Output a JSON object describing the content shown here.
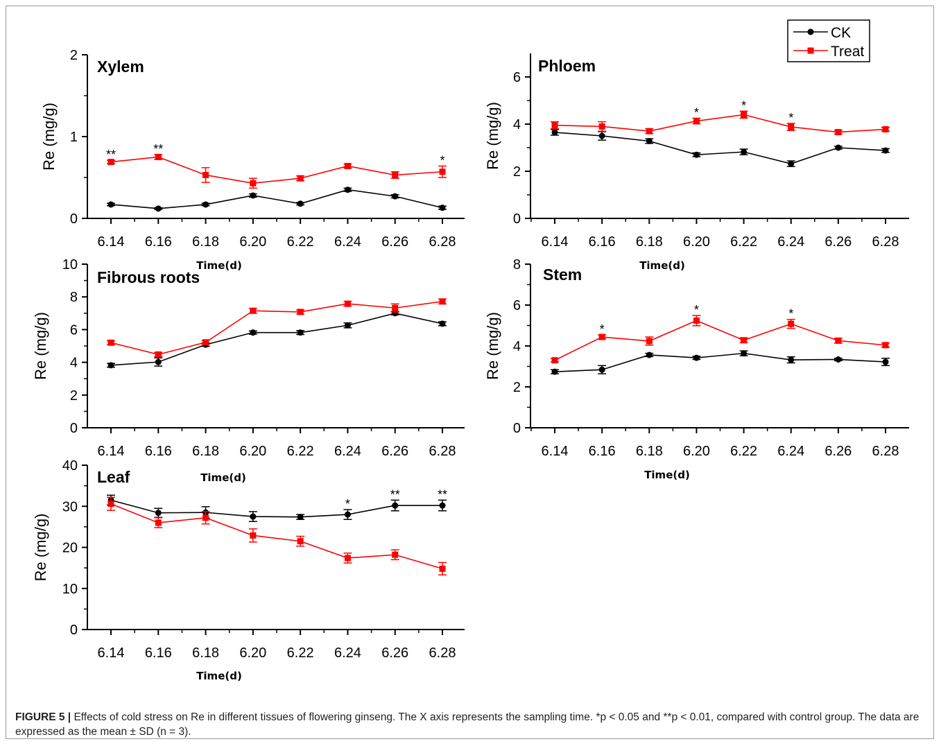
{
  "caption": {
    "label": "FIGURE 5 |",
    "text": " Effects of cold stress on Re in different tissues of flowering ginseng. The X axis represents the sampling time. *p < 0.05 and **p < 0.01, compared with control group. The data are expressed as the mean ± SD (n = 3)."
  },
  "legend": [
    {
      "name": "CK",
      "color": "#000000",
      "marker": "circle"
    },
    {
      "name": "Treat",
      "color": "#ff0000",
      "marker": "square"
    }
  ],
  "chart_data": [
    {
      "type": "line",
      "title": "Xylem",
      "xlabel": "Time(d)",
      "ylabel": "Re (mg/g)",
      "categories": [
        "6.14",
        "6.16",
        "6.18",
        "6.20",
        "6.22",
        "6.24",
        "6.26",
        "6.28"
      ],
      "ylim": [
        0,
        2
      ],
      "yticks": [
        0,
        1,
        2
      ],
      "series": [
        {
          "name": "CK",
          "color": "#000000",
          "values": [
            0.17,
            0.12,
            0.17,
            0.28,
            0.18,
            0.35,
            0.27,
            0.13
          ],
          "errors": [
            0.015,
            0.01,
            0.015,
            0.02,
            0.015,
            0.02,
            0.02,
            0.02
          ]
        },
        {
          "name": "Treat",
          "color": "#ff0000",
          "values": [
            0.69,
            0.75,
            0.53,
            0.43,
            0.49,
            0.64,
            0.53,
            0.57
          ],
          "errors": [
            0.02,
            0.03,
            0.09,
            0.06,
            0.03,
            0.025,
            0.04,
            0.07
          ]
        }
      ],
      "significance": [
        {
          "x": "6.14",
          "label": "**"
        },
        {
          "x": "6.16",
          "label": "**"
        },
        {
          "x": "6.28",
          "label": "*"
        }
      ]
    },
    {
      "type": "line",
      "title": "Phloem",
      "xlabel": "Time(d)",
      "ylabel": "Re (mg/g)",
      "categories": [
        "6.14",
        "6.16",
        "6.18",
        "6.20",
        "6.22",
        "6.24",
        "6.26",
        "6.28"
      ],
      "ylim": [
        0,
        7
      ],
      "yticks": [
        0,
        2,
        4,
        6
      ],
      "series": [
        {
          "name": "CK",
          "color": "#000000",
          "values": [
            3.65,
            3.5,
            3.28,
            2.7,
            2.82,
            2.32,
            3.0,
            2.88
          ],
          "errors": [
            0.12,
            0.18,
            0.1,
            0.08,
            0.12,
            0.12,
            0.06,
            0.08
          ]
        },
        {
          "name": "Treat",
          "color": "#ff0000",
          "values": [
            3.95,
            3.9,
            3.7,
            4.13,
            4.4,
            3.88,
            3.66,
            3.78
          ],
          "errors": [
            0.15,
            0.2,
            0.1,
            0.12,
            0.15,
            0.15,
            0.08,
            0.08
          ]
        }
      ],
      "significance": [
        {
          "x": "6.20",
          "label": "*"
        },
        {
          "x": "6.22",
          "label": "*"
        },
        {
          "x": "6.24",
          "label": "*"
        }
      ]
    },
    {
      "type": "line",
      "title": "Fibrous roots",
      "xlabel": "Time(d)",
      "ylabel": "Re (mg/g)",
      "categories": [
        "6.14",
        "6.16",
        "6.18",
        "6.20",
        "6.22",
        "6.24",
        "6.26",
        "6.28"
      ],
      "ylim": [
        0,
        10
      ],
      "yticks": [
        0,
        2,
        4,
        6,
        8,
        10
      ],
      "series": [
        {
          "name": "CK",
          "color": "#000000",
          "values": [
            3.82,
            4.02,
            5.08,
            5.82,
            5.82,
            6.26,
            7.0,
            6.36
          ],
          "errors": [
            0.12,
            0.25,
            0.1,
            0.1,
            0.12,
            0.15,
            0.1,
            0.12
          ]
        },
        {
          "name": "Treat",
          "color": "#ff0000",
          "values": [
            5.2,
            4.48,
            5.22,
            7.15,
            7.08,
            7.58,
            7.32,
            7.72
          ],
          "errors": [
            0.12,
            0.12,
            0.12,
            0.15,
            0.12,
            0.15,
            0.25,
            0.15
          ]
        }
      ],
      "significance": []
    },
    {
      "type": "line",
      "title": "Stem",
      "xlabel": "Time(d)",
      "ylabel": "Re (mg/g)",
      "categories": [
        "6.14",
        "6.16",
        "6.18",
        "6.20",
        "6.22",
        "6.24",
        "6.26",
        "6.28"
      ],
      "ylim": [
        0,
        8
      ],
      "yticks": [
        0,
        2,
        4,
        6,
        8
      ],
      "series": [
        {
          "name": "CK",
          "color": "#000000",
          "values": [
            2.74,
            2.84,
            3.56,
            3.42,
            3.64,
            3.32,
            3.34,
            3.22
          ],
          "errors": [
            0.1,
            0.2,
            0.08,
            0.08,
            0.12,
            0.15,
            0.06,
            0.18
          ]
        },
        {
          "name": "Treat",
          "color": "#ff0000",
          "values": [
            3.3,
            4.44,
            4.24,
            5.24,
            4.28,
            5.08,
            4.26,
            4.04
          ],
          "errors": [
            0.08,
            0.1,
            0.2,
            0.25,
            0.12,
            0.22,
            0.12,
            0.1
          ]
        }
      ],
      "significance": [
        {
          "x": "6.16",
          "label": "*"
        },
        {
          "x": "6.20",
          "label": "*"
        },
        {
          "x": "6.24",
          "label": "*"
        }
      ]
    },
    {
      "type": "line",
      "title": "Leaf",
      "xlabel": "Time(d)",
      "ylabel": "Re (mg/g)",
      "categories": [
        "6.14",
        "6.16",
        "6.18",
        "6.20",
        "6.22",
        "6.24",
        "6.26",
        "6.28"
      ],
      "ylim": [
        0,
        40
      ],
      "yticks": [
        0,
        10,
        20,
        30,
        40
      ],
      "series": [
        {
          "name": "CK",
          "color": "#000000",
          "values": [
            31.5,
            28.4,
            28.5,
            27.5,
            27.4,
            28.0,
            30.2,
            30.2
          ],
          "errors": [
            1.2,
            1.1,
            1.4,
            1.2,
            0.6,
            1.2,
            1.3,
            1.3
          ]
        },
        {
          "name": "Treat",
          "color": "#ff0000",
          "values": [
            30.6,
            26.0,
            27.2,
            22.9,
            21.5,
            17.4,
            18.2,
            14.8
          ],
          "errors": [
            1.6,
            1.2,
            1.5,
            1.6,
            1.2,
            1.2,
            1.2,
            1.5
          ]
        }
      ],
      "significance": [
        {
          "x": "6.24",
          "label": "*"
        },
        {
          "x": "6.26",
          "label": "**"
        },
        {
          "x": "6.28",
          "label": "**"
        }
      ]
    }
  ]
}
